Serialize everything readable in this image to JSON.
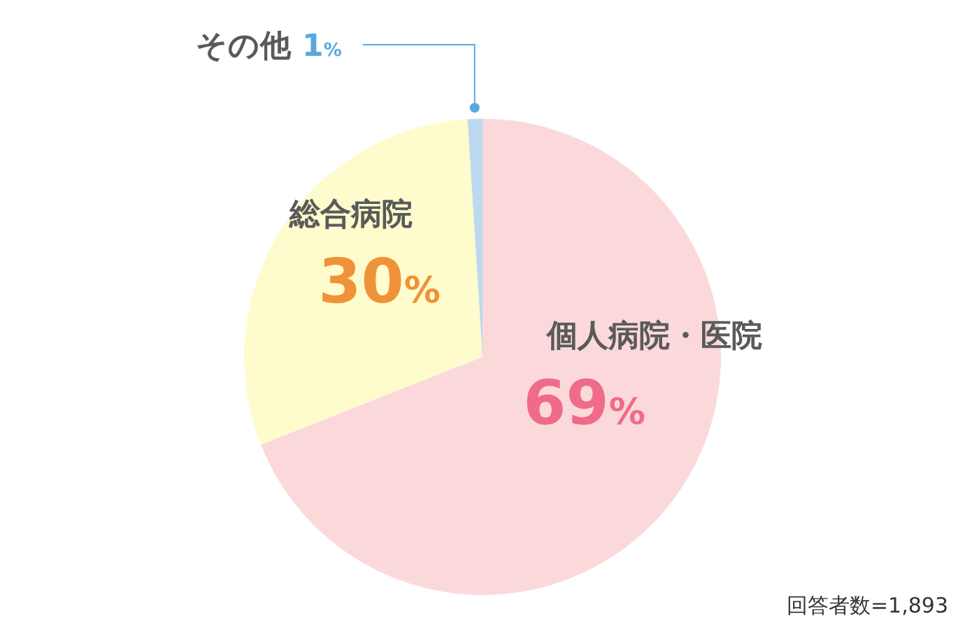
{
  "chart_data": {
    "type": "pie",
    "categories": [
      "個人病院・医院",
      "総合病院",
      "その他"
    ],
    "values": [
      69,
      30,
      1
    ],
    "colors": [
      "#fbd9da",
      "#fefccc",
      "#bcd9ef"
    ],
    "value_labels": [
      "69%",
      "30%",
      "1%"
    ],
    "legend": false,
    "annotations": [
      "回答者数=1,893"
    ]
  }
}
